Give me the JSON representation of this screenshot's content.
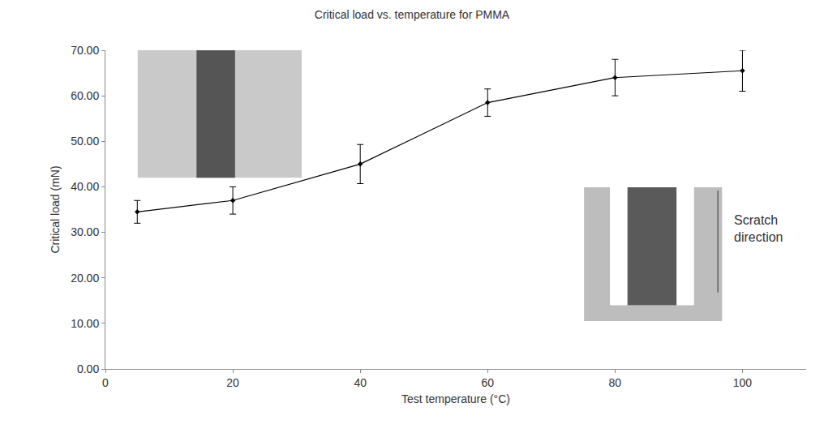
{
  "chart_data": {
    "type": "line",
    "title": "Critical load vs. temperature for PMMA",
    "x_label": "Test temperature (°C)",
    "y_label": "Critical load (mN)",
    "x": [
      5,
      20,
      40,
      60,
      80,
      100
    ],
    "values": [
      34.5,
      37,
      45,
      58.5,
      64,
      65.5
    ],
    "errors": [
      2.5,
      3,
      4.3,
      3,
      4,
      4.5
    ],
    "color": "#000000",
    "marker": "diamond",
    "line_style": "solid",
    "xlim": [
      0,
      110
    ],
    "xticks": [
      0,
      20,
      40,
      60,
      80,
      100
    ],
    "ylim": [
      0,
      70
    ],
    "yticks": [
      {
        "value": 0,
        "label": "0.00"
      },
      {
        "value": 10,
        "label": "10.00"
      },
      {
        "value": 20,
        "label": "20.00"
      },
      {
        "value": 30,
        "label": "30.00"
      },
      {
        "value": 40,
        "label": "40.00"
      },
      {
        "value": 50,
        "label": "50.00"
      },
      {
        "value": 60,
        "label": "60.00"
      },
      {
        "value": 70,
        "label": "70.00"
      }
    ],
    "grid": false,
    "annotations": [
      "Scratch direction"
    ]
  }
}
